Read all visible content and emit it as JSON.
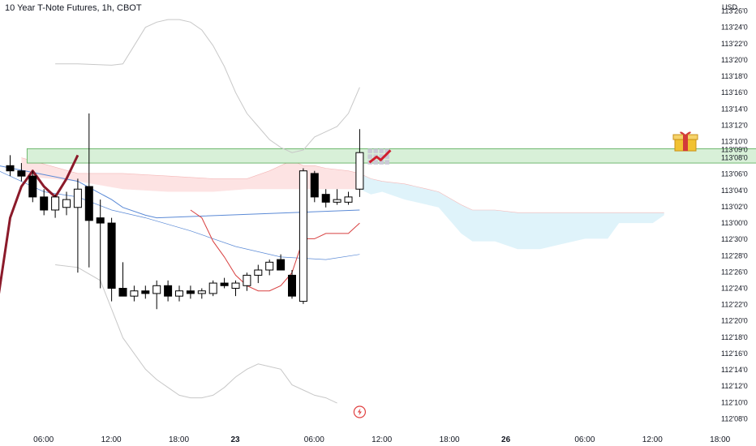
{
  "title": "10 Year T-Note Futures, 1h, CBOT",
  "currency": "USD",
  "colors": {
    "bull_fill": "#ffffff",
    "bear_fill": "#000000",
    "candle_stroke": "#000000",
    "zone_fill": "#d8f0d8",
    "zone_stroke": "#55aa55",
    "bollinger": "#c8c8c8",
    "kumo_bear": "#fde3e3",
    "kumo_bull": "#dff3fa",
    "kijun": "#5b8ad6",
    "tenkan": "#d84040",
    "thick_line": "#8b1a2a",
    "axis_text": "#131722"
  },
  "icons": {
    "gift": "gift-icon",
    "chart_trend": "chart-trend-icon",
    "flash": "flash-icon"
  },
  "chart_data": {
    "type": "candlestick",
    "title": "10 Year T-Note Futures, 1h, CBOT",
    "y_tick_labels": [
      "113'26'0",
      "113'24'0",
      "113'22'0",
      "113'20'0",
      "113'18'0",
      "113'16'0",
      "113'14'0",
      "113'12'0",
      "113'10'0",
      "113'09'0",
      "113'08'0",
      "113'06'0",
      "113'04'0",
      "113'02'0",
      "113'00'0",
      "112'30'0",
      "112'28'0",
      "112'26'0",
      "112'24'0",
      "112'22'0",
      "112'20'0",
      "112'18'0",
      "112'16'0",
      "112'14'0",
      "112'12'0",
      "112'10'0",
      "112'08'0"
    ],
    "y_tick_values": [
      113.8125,
      113.75,
      113.6875,
      113.625,
      113.5625,
      113.5,
      113.4375,
      113.375,
      113.3125,
      113.28125,
      113.25,
      113.1875,
      113.125,
      113.0625,
      113.0,
      112.9375,
      112.875,
      112.8125,
      112.75,
      112.6875,
      112.625,
      112.5625,
      112.5,
      112.4375,
      112.375,
      112.3125,
      112.25
    ],
    "ylim": [
      112.245,
      113.83
    ],
    "x_tick_labels": [
      "06:00",
      "12:00",
      "18:00",
      "23",
      "06:00",
      "12:00",
      "18:00",
      "26",
      "06:00",
      "12:00",
      "18:00"
    ],
    "x_tick_index": [
      3,
      9,
      15,
      20,
      27,
      33,
      39,
      44,
      51,
      57,
      63
    ],
    "x_tick_bold": [
      false,
      false,
      false,
      true,
      false,
      false,
      false,
      true,
      false,
      false,
      false
    ],
    "candles": [
      {
        "i": 0,
        "o": 113.22,
        "h": 113.26,
        "l": 113.18,
        "c": 113.2
      },
      {
        "i": 1,
        "o": 113.2,
        "h": 113.23,
        "l": 113.16,
        "c": 113.18
      },
      {
        "i": 2,
        "o": 113.18,
        "h": 113.2,
        "l": 113.08,
        "c": 113.1
      },
      {
        "i": 3,
        "o": 113.1,
        "h": 113.13,
        "l": 113.03,
        "c": 113.05
      },
      {
        "i": 4,
        "o": 113.05,
        "h": 113.11,
        "l": 113.02,
        "c": 113.1
      },
      {
        "i": 5,
        "o": 113.06,
        "h": 113.12,
        "l": 113.03,
        "c": 113.09
      },
      {
        "i": 6,
        "o": 113.06,
        "h": 113.17,
        "l": 112.81,
        "c": 113.13
      },
      {
        "i": 7,
        "o": 113.14,
        "h": 113.42,
        "l": 112.83,
        "c": 113.01
      },
      {
        "i": 8,
        "o": 113.02,
        "h": 113.09,
        "l": 112.75,
        "c": 113.0
      },
      {
        "i": 9,
        "o": 113.0,
        "h": 113.02,
        "l": 112.7,
        "c": 112.75
      },
      {
        "i": 10,
        "o": 112.75,
        "h": 112.85,
        "l": 112.72,
        "c": 112.72
      },
      {
        "i": 11,
        "o": 112.72,
        "h": 112.76,
        "l": 112.7,
        "c": 112.74
      },
      {
        "i": 12,
        "o": 112.74,
        "h": 112.76,
        "l": 112.71,
        "c": 112.73
      },
      {
        "i": 13,
        "o": 112.73,
        "h": 112.78,
        "l": 112.67,
        "c": 112.76
      },
      {
        "i": 14,
        "o": 112.76,
        "h": 112.78,
        "l": 112.7,
        "c": 112.72
      },
      {
        "i": 15,
        "o": 112.72,
        "h": 112.76,
        "l": 112.7,
        "c": 112.74
      },
      {
        "i": 16,
        "o": 112.74,
        "h": 112.76,
        "l": 112.71,
        "c": 112.73
      },
      {
        "i": 17,
        "o": 112.73,
        "h": 112.75,
        "l": 112.71,
        "c": 112.74
      },
      {
        "i": 18,
        "o": 112.73,
        "h": 112.78,
        "l": 112.72,
        "c": 112.77
      },
      {
        "i": 19,
        "o": 112.77,
        "h": 112.79,
        "l": 112.75,
        "c": 112.76
      },
      {
        "i": 20,
        "o": 112.75,
        "h": 112.78,
        "l": 112.72,
        "c": 112.77
      },
      {
        "i": 21,
        "o": 112.76,
        "h": 112.81,
        "l": 112.74,
        "c": 112.8
      },
      {
        "i": 22,
        "o": 112.8,
        "h": 112.84,
        "l": 112.77,
        "c": 112.82
      },
      {
        "i": 23,
        "o": 112.82,
        "h": 112.86,
        "l": 112.8,
        "c": 112.85
      },
      {
        "i": 24,
        "o": 112.86,
        "h": 112.88,
        "l": 112.82,
        "c": 112.82
      },
      {
        "i": 25,
        "o": 112.8,
        "h": 112.82,
        "l": 112.71,
        "c": 112.72
      },
      {
        "i": 26,
        "o": 112.7,
        "h": 113.21,
        "l": 112.69,
        "c": 113.2
      },
      {
        "i": 27,
        "o": 113.19,
        "h": 113.2,
        "l": 113.08,
        "c": 113.1
      },
      {
        "i": 28,
        "o": 113.11,
        "h": 113.13,
        "l": 113.06,
        "c": 113.08
      },
      {
        "i": 29,
        "o": 113.08,
        "h": 113.13,
        "l": 113.07,
        "c": 113.09
      },
      {
        "i": 30,
        "o": 113.08,
        "h": 113.12,
        "l": 113.07,
        "c": 113.1
      },
      {
        "i": 31,
        "o": 113.13,
        "h": 113.36,
        "l": 113.1,
        "c": 113.27
      }
    ],
    "resistance_zone": {
      "from_index": 1.5,
      "to_index": 73.5,
      "low": 113.23,
      "high": 113.285
    },
    "bollinger_upper": [
      [
        4,
        113.61
      ],
      [
        6,
        113.61
      ],
      [
        9,
        113.605
      ],
      [
        10,
        113.61
      ],
      [
        11,
        113.68
      ],
      [
        12,
        113.75
      ],
      [
        13,
        113.77
      ],
      [
        14,
        113.78
      ],
      [
        15,
        113.78
      ],
      [
        16,
        113.77
      ],
      [
        17,
        113.74
      ],
      [
        18,
        113.68
      ],
      [
        19,
        113.6
      ],
      [
        20,
        113.5
      ],
      [
        21,
        113.42
      ],
      [
        22,
        113.37
      ],
      [
        23,
        113.32
      ],
      [
        24,
        113.29
      ],
      [
        25,
        113.27
      ],
      [
        26,
        113.28
      ],
      [
        27,
        113.33
      ],
      [
        28,
        113.35
      ],
      [
        29,
        113.37
      ],
      [
        30,
        113.42
      ],
      [
        31,
        113.52
      ]
    ],
    "bollinger_lower": [
      [
        4,
        112.84
      ],
      [
        6,
        112.83
      ],
      [
        8,
        112.78
      ],
      [
        9,
        112.67
      ],
      [
        10,
        112.56
      ],
      [
        11,
        112.5
      ],
      [
        12,
        112.44
      ],
      [
        13,
        112.4
      ],
      [
        14,
        112.37
      ],
      [
        15,
        112.34
      ],
      [
        16,
        112.33
      ],
      [
        17,
        112.33
      ],
      [
        18,
        112.34
      ],
      [
        19,
        112.37
      ],
      [
        20,
        112.41
      ],
      [
        21,
        112.44
      ],
      [
        22,
        112.46
      ],
      [
        23,
        112.45
      ],
      [
        24,
        112.44
      ],
      [
        25,
        112.38
      ],
      [
        26,
        112.36
      ],
      [
        27,
        112.34
      ],
      [
        28,
        112.33
      ],
      [
        29,
        112.31
      ]
    ],
    "cloud_bear": [
      [
        1,
        113.18,
        113.25
      ],
      [
        6,
        113.16,
        113.19
      ],
      [
        10,
        113.13,
        113.19
      ],
      [
        14,
        113.12,
        113.18
      ],
      [
        18,
        113.12,
        113.17
      ],
      [
        21,
        113.13,
        113.17
      ],
      [
        23,
        113.13,
        113.2
      ],
      [
        25,
        113.13,
        113.24
      ],
      [
        26,
        113.13,
        113.22
      ],
      [
        27,
        113.13,
        113.22
      ],
      [
        28,
        113.13,
        113.21
      ],
      [
        30,
        113.13,
        113.2
      ],
      [
        31,
        113.13,
        113.19
      ]
    ],
    "cloud_bull": [
      [
        31,
        113.13,
        113.19
      ],
      [
        32,
        113.11,
        113.17
      ],
      [
        33,
        113.12,
        113.16
      ],
      [
        35,
        113.09,
        113.15
      ],
      [
        37,
        113.07,
        113.13
      ],
      [
        38,
        113.06,
        113.12
      ],
      [
        40,
        112.96,
        113.07
      ],
      [
        41,
        112.93,
        113.05
      ],
      [
        43,
        112.93,
        113.05
      ],
      [
        45,
        112.9,
        113.04
      ],
      [
        47,
        112.9,
        113.04
      ],
      [
        49,
        112.92,
        113.04
      ],
      [
        51,
        112.94,
        113.04
      ],
      [
        53,
        112.94,
        113.04
      ],
      [
        54,
        113.0,
        113.04
      ],
      [
        55,
        113.0,
        113.04
      ],
      [
        57,
        113.0,
        113.04
      ],
      [
        58,
        113.03,
        113.04
      ]
    ],
    "kijun": [
      [
        -1,
        113.22
      ],
      [
        6,
        113.16
      ],
      [
        9,
        113.09
      ],
      [
        10,
        113.06
      ],
      [
        12,
        113.03
      ],
      [
        13,
        113.02
      ],
      [
        31,
        113.05
      ]
    ],
    "kijun2": [
      [
        -1,
        113.2
      ],
      [
        3,
        113.12
      ],
      [
        6,
        113.1
      ],
      [
        9,
        113.05
      ],
      [
        12,
        113.02
      ],
      [
        16,
        112.97
      ],
      [
        20,
        112.91
      ],
      [
        24,
        112.87
      ],
      [
        28,
        112.86
      ],
      [
        31,
        112.88
      ]
    ],
    "tenkan": [
      [
        16,
        113.05
      ],
      [
        17,
        113.02
      ],
      [
        18,
        112.93
      ],
      [
        19,
        112.87
      ],
      [
        20,
        112.8
      ],
      [
        21,
        112.76
      ],
      [
        22,
        112.74
      ],
      [
        23,
        112.74
      ],
      [
        24,
        112.76
      ],
      [
        25,
        112.81
      ],
      [
        26,
        112.94
      ],
      [
        27,
        112.94
      ],
      [
        28,
        112.96
      ],
      [
        30,
        112.96
      ],
      [
        31,
        113.0
      ]
    ],
    "thick_line": [
      [
        -1,
        112.73
      ],
      [
        0,
        113.02
      ],
      [
        1,
        113.14
      ],
      [
        2,
        113.2
      ],
      [
        3,
        113.14
      ],
      [
        4,
        113.1
      ],
      [
        5,
        113.17
      ],
      [
        6,
        113.26
      ]
    ]
  }
}
